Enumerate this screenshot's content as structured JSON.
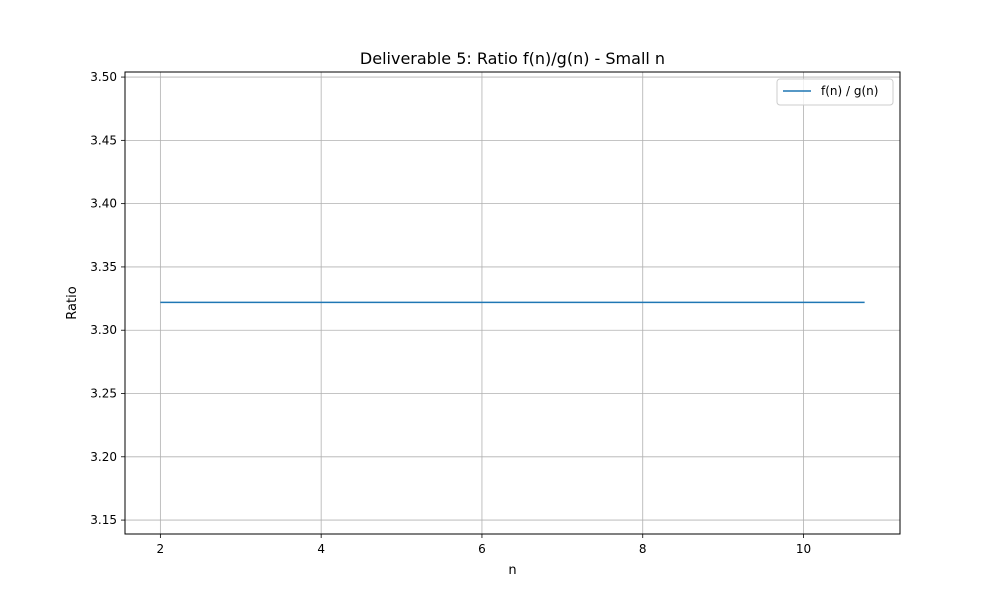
{
  "chart_data": {
    "type": "line",
    "title": "Deliverable 5: Ratio f(n)/g(n) - Small n",
    "xlabel": "n",
    "ylabel": "Ratio",
    "xlim": [
      1.56,
      11.2
    ],
    "ylim": [
      3.139,
      3.504
    ],
    "xticks": [
      2,
      4,
      6,
      8,
      10
    ],
    "xtick_labels": [
      "2",
      "4",
      "6",
      "8",
      "10"
    ],
    "yticks": [
      3.15,
      3.2,
      3.25,
      3.3,
      3.35,
      3.4,
      3.45,
      3.5
    ],
    "ytick_labels": [
      "3.15",
      "3.20",
      "3.25",
      "3.30",
      "3.35",
      "3.40",
      "3.45",
      "3.50"
    ],
    "grid": true,
    "legend_position": "top-right",
    "series": [
      {
        "name": "f(n) / g(n)",
        "color": "#1f77b4",
        "x": [
          2,
          10.76
        ],
        "y": [
          3.322,
          3.322
        ]
      }
    ]
  }
}
